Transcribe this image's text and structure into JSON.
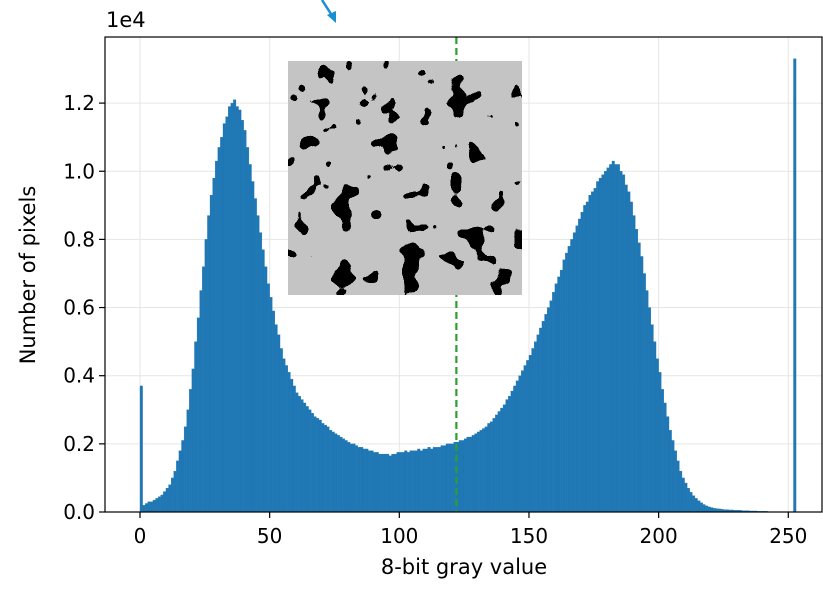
{
  "chart_data": {
    "type": "histogram",
    "xlabel": "8-bit gray value",
    "ylabel": "Number of pixels",
    "y_offset_label": "1e4",
    "color": "#1f77b4",
    "grid": true,
    "xlim": [
      -13.5,
      263
    ],
    "ylim": [
      0,
      1.394
    ],
    "xticks": [
      0,
      50,
      100,
      150,
      200,
      250
    ],
    "yticks": [
      {
        "value": 0,
        "label": "0.0"
      },
      0.2,
      0.4,
      0.6,
      0.8,
      {
        "value": 1,
        "label": "1.0"
      },
      1.2
    ],
    "threshold_line": {
      "x": 122,
      "color": "#2ca02c"
    },
    "bins": [
      0,
      1,
      2,
      3,
      4,
      5,
      6,
      7,
      8,
      9,
      10,
      11,
      12,
      13,
      14,
      15,
      16,
      17,
      18,
      19,
      20,
      21,
      22,
      23,
      24,
      25,
      26,
      27,
      28,
      29,
      30,
      31,
      32,
      33,
      34,
      35,
      36,
      37,
      38,
      39,
      40,
      41,
      42,
      43,
      44,
      45,
      46,
      47,
      48,
      49,
      50,
      51,
      52,
      53,
      54,
      55,
      56,
      57,
      58,
      59,
      60,
      61,
      62,
      63,
      64,
      65,
      66,
      67,
      68,
      69,
      70,
      71,
      72,
      73,
      74,
      75,
      76,
      77,
      78,
      79,
      80,
      81,
      82,
      83,
      84,
      85,
      86,
      87,
      88,
      89,
      90,
      91,
      92,
      93,
      94,
      95,
      96,
      97,
      98,
      99,
      100,
      101,
      102,
      103,
      104,
      105,
      106,
      107,
      108,
      109,
      110,
      111,
      112,
      113,
      114,
      115,
      116,
      117,
      118,
      119,
      120,
      121,
      122,
      123,
      124,
      125,
      126,
      127,
      128,
      129,
      130,
      131,
      132,
      133,
      134,
      135,
      136,
      137,
      138,
      139,
      140,
      141,
      142,
      143,
      144,
      145,
      146,
      147,
      148,
      149,
      150,
      151,
      152,
      153,
      154,
      155,
      156,
      157,
      158,
      159,
      160,
      161,
      162,
      163,
      164,
      165,
      166,
      167,
      168,
      169,
      170,
      171,
      172,
      173,
      174,
      175,
      176,
      177,
      178,
      179,
      180,
      181,
      182,
      183,
      184,
      185,
      186,
      187,
      188,
      189,
      190,
      191,
      192,
      193,
      194,
      195,
      196,
      197,
      198,
      199,
      200,
      201,
      202,
      203,
      204,
      205,
      206,
      207,
      208,
      209,
      210,
      211,
      212,
      213,
      214,
      215,
      216,
      217,
      218,
      219,
      220,
      221,
      222,
      223,
      224,
      225,
      226,
      227,
      228,
      229,
      230,
      231,
      232,
      233,
      234,
      235,
      236,
      237,
      238,
      239,
      240,
      241,
      242,
      243,
      244,
      245,
      246,
      247,
      248,
      249,
      250,
      251,
      252,
      253,
      254,
      255,
      256
    ],
    "counts": [
      0.37,
      0.02,
      0.025,
      0.03,
      0.03,
      0.035,
      0.04,
      0.045,
      0.05,
      0.06,
      0.07,
      0.08,
      0.1,
      0.12,
      0.15,
      0.18,
      0.21,
      0.25,
      0.3,
      0.36,
      0.42,
      0.5,
      0.57,
      0.65,
      0.72,
      0.8,
      0.87,
      0.93,
      0.98,
      1.03,
      1.07,
      1.1,
      1.14,
      1.16,
      1.19,
      1.2,
      1.21,
      1.19,
      1.18,
      1.15,
      1.12,
      1.07,
      1.02,
      0.97,
      0.92,
      0.87,
      0.82,
      0.77,
      0.72,
      0.67,
      0.63,
      0.59,
      0.55,
      0.52,
      0.48,
      0.45,
      0.43,
      0.41,
      0.39,
      0.37,
      0.35,
      0.34,
      0.33,
      0.32,
      0.31,
      0.3,
      0.29,
      0.28,
      0.275,
      0.27,
      0.26,
      0.255,
      0.25,
      0.24,
      0.235,
      0.23,
      0.225,
      0.22,
      0.215,
      0.21,
      0.205,
      0.2,
      0.2,
      0.195,
      0.19,
      0.19,
      0.185,
      0.185,
      0.18,
      0.18,
      0.175,
      0.175,
      0.17,
      0.17,
      0.17,
      0.17,
      0.165,
      0.17,
      0.17,
      0.175,
      0.175,
      0.175,
      0.18,
      0.175,
      0.18,
      0.18,
      0.18,
      0.185,
      0.18,
      0.185,
      0.185,
      0.19,
      0.185,
      0.19,
      0.19,
      0.19,
      0.195,
      0.195,
      0.2,
      0.2,
      0.2,
      0.205,
      0.205,
      0.21,
      0.21,
      0.215,
      0.22,
      0.22,
      0.225,
      0.23,
      0.235,
      0.24,
      0.245,
      0.25,
      0.26,
      0.265,
      0.275,
      0.285,
      0.295,
      0.305,
      0.315,
      0.33,
      0.34,
      0.355,
      0.37,
      0.385,
      0.4,
      0.415,
      0.43,
      0.445,
      0.46,
      0.48,
      0.5,
      0.52,
      0.54,
      0.56,
      0.58,
      0.6,
      0.62,
      0.645,
      0.67,
      0.69,
      0.71,
      0.74,
      0.76,
      0.78,
      0.8,
      0.82,
      0.84,
      0.86,
      0.88,
      0.9,
      0.91,
      0.93,
      0.94,
      0.95,
      0.97,
      0.98,
      0.99,
      1.0,
      1.01,
      1.02,
      1.03,
      1.02,
      1.02,
      1.0,
      0.99,
      0.96,
      0.94,
      0.91,
      0.87,
      0.83,
      0.79,
      0.75,
      0.7,
      0.65,
      0.6,
      0.55,
      0.5,
      0.45,
      0.41,
      0.36,
      0.32,
      0.28,
      0.24,
      0.21,
      0.18,
      0.15,
      0.12,
      0.1,
      0.085,
      0.07,
      0.058,
      0.048,
      0.04,
      0.033,
      0.027,
      0.022,
      0.018,
      0.015,
      0.013,
      0.011,
      0.01,
      0.009,
      0.008,
      0.007,
      0.007,
      0.006,
      0.006,
      0.005,
      0.005,
      0.005,
      0.004,
      0.004,
      0.004,
      0.003,
      0.003,
      0.003,
      0.002,
      0.002,
      0.002,
      0.002,
      0.001,
      0.001,
      0.001,
      0.001,
      0.001,
      0.001,
      0.001,
      0.001,
      0.001,
      0.001,
      1.33,
      0,
      0,
      0
    ]
  }
}
